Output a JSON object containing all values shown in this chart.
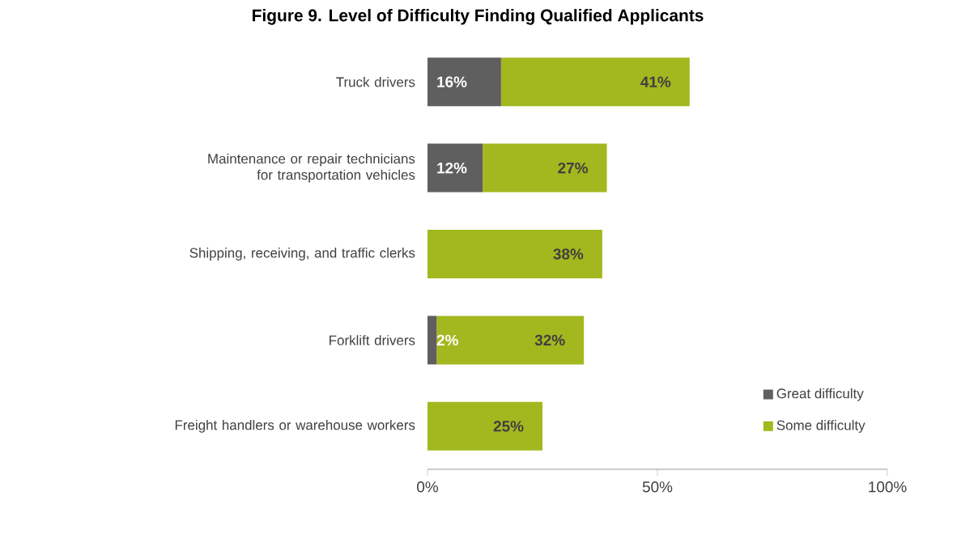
{
  "chart_data": {
    "type": "bar",
    "orientation": "horizontal",
    "stacked": true,
    "title": "Figure 9. Level of Difficulty Finding Qualified Applicants",
    "categories": [
      "Truck drivers",
      "Maintenance or repair technicians for transportation vehicles",
      "Shipping, receiving, and traffic clerks",
      "Forklift drivers",
      "Freight handlers or warehouse workers"
    ],
    "series": [
      {
        "name": "Great difficulty",
        "color": "#5f5f5f",
        "values": [
          16,
          12,
          0,
          2,
          0
        ],
        "value_labels": [
          "16%",
          "12%",
          null,
          "2%",
          null
        ]
      },
      {
        "name": "Some difficulty",
        "color": "#a3b81e",
        "values": [
          41,
          27,
          38,
          32,
          25
        ],
        "value_labels": [
          "41%",
          "27%",
          "38%",
          "32%",
          "25%"
        ]
      }
    ],
    "xlim": [
      0,
      100
    ],
    "xticks": [
      {
        "value": 0,
        "label": "0%"
      },
      {
        "value": 50,
        "label": "50%"
      },
      {
        "value": 100,
        "label": "100%"
      }
    ],
    "grid": false,
    "legend": "bottom right"
  }
}
